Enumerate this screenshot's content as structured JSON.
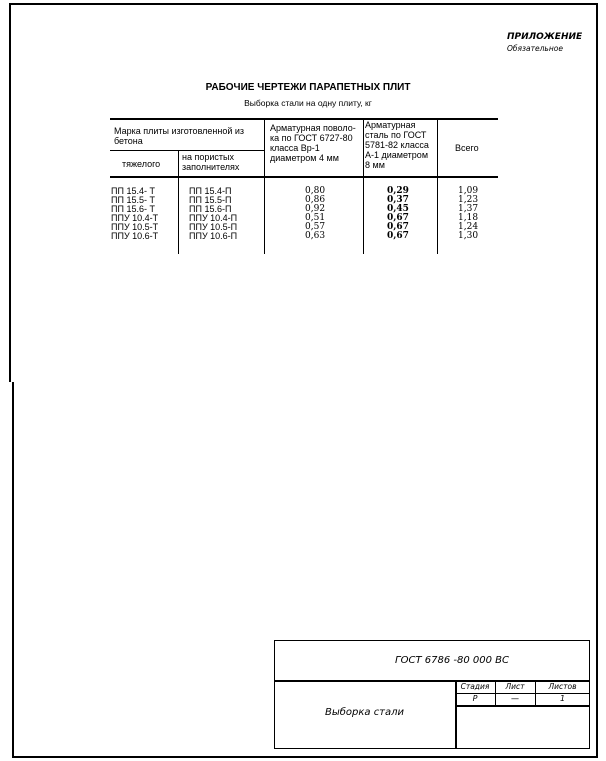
{
  "annex": {
    "title": "ПРИЛОЖЕНИЕ",
    "subtitle": "Обязательное"
  },
  "title": "РАБОЧИЕ ЧЕРТЕЖИ ПАРАПЕТНЫХ ПЛИТ",
  "subtitle": "Выборка стали на одну плиту, кг",
  "table": {
    "headers": {
      "group": "Марка плиты изготовленной из бетона",
      "heavy": "тяжелого",
      "porous": "на пористых заполнителях",
      "wire": "Арматурная поволо-ка по ГОСТ 6727-80 класса Вр-1 диаметром 4 мм",
      "steel": "Арматурная сталь по ГОСТ 5781-82 класса А-1 диаметром 8 мм",
      "total": "Всего"
    },
    "rows": [
      {
        "heavy": "ПП 15.4- Т",
        "porous": "ПП 15.4-П",
        "wire": "0,80",
        "steel": "0,29",
        "total": "1,09"
      },
      {
        "heavy": "ПП 15.5- Т",
        "porous": "ПП 15.5-П",
        "wire": "0,86",
        "steel": "0,37",
        "total": "1,23"
      },
      {
        "heavy": "ПП 15.6- Т",
        "porous": "ПП 15.6-П",
        "wire": "0,92",
        "steel": "0,45",
        "total": "1,37"
      },
      {
        "heavy": "ППУ 10.4-Т",
        "porous": "ППУ 10.4-П",
        "wire": "0,51",
        "steel": "0,67",
        "total": "1,18"
      },
      {
        "heavy": "ППУ 10.5-Т",
        "porous": "ППУ 10.5-П",
        "wire": "0,57",
        "steel": "0,67",
        "total": "1,24"
      },
      {
        "heavy": "ППУ 10.6-Т",
        "porous": "ППУ 10.6-П",
        "wire": "0,63",
        "steel": "0,67",
        "total": "1,30"
      }
    ]
  },
  "stamp": {
    "code": "ГОСТ 6786 -80  000 ВС",
    "name": "Выборка  стали",
    "stage_label": "Стадия",
    "stage": "Р",
    "sheet_label": "Лист",
    "sheet": "—",
    "sheets_label": "Листов",
    "sheets": "1"
  }
}
